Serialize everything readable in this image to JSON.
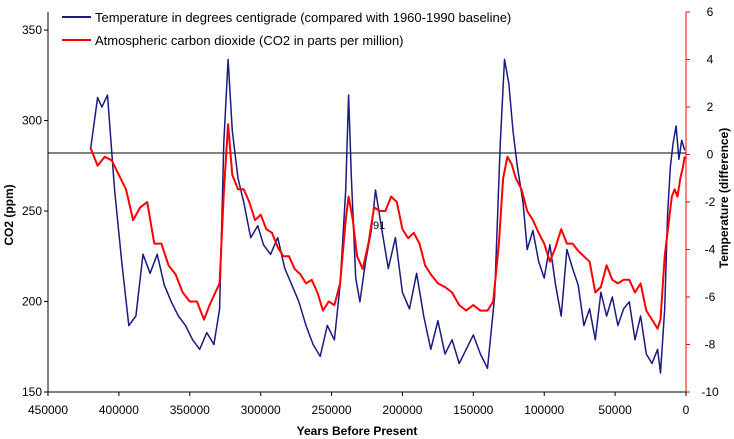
{
  "chart_data": {
    "type": "line",
    "xlabel": "Years Before Present",
    "ylabel_left": "CO2 (ppm)",
    "ylabel_right": "Temperature (difference)",
    "xlim": [
      450000,
      0
    ],
    "ylim_left": [
      150,
      360
    ],
    "ylim_right": [
      -10,
      6
    ],
    "x_ticks": [
      "450000",
      "400000",
      "350000",
      "300000",
      "250000",
      "200000",
      "150000",
      "100000",
      "50000",
      "0"
    ],
    "y_left_ticks": [
      "150",
      "200",
      "250",
      "300",
      "350"
    ],
    "y_right_ticks": [
      "6",
      "4",
      "2",
      "0",
      "-2",
      "-4",
      "-6",
      "-8",
      "-10"
    ],
    "baseline_temperature": 0,
    "grid": false,
    "legend_position": "top-left",
    "annotation": "91",
    "series": [
      {
        "name": "Temperature in degrees centigrade (compared with 1960-1990 baseline)",
        "axis": "right",
        "color": "#1a1a80",
        "points": [
          [
            420000,
            0.2
          ],
          [
            415000,
            2.4
          ],
          [
            412000,
            2.0
          ],
          [
            408000,
            2.5
          ],
          [
            403000,
            -1.5
          ],
          [
            398000,
            -4.5
          ],
          [
            393000,
            -7.2
          ],
          [
            388000,
            -6.8
          ],
          [
            383000,
            -4.2
          ],
          [
            378000,
            -5.0
          ],
          [
            373000,
            -4.2
          ],
          [
            368000,
            -5.5
          ],
          [
            363000,
            -6.2
          ],
          [
            358000,
            -6.8
          ],
          [
            353000,
            -7.2
          ],
          [
            348000,
            -7.8
          ],
          [
            343000,
            -8.2
          ],
          [
            338000,
            -7.5
          ],
          [
            333000,
            -8.0
          ],
          [
            329000,
            -6.5
          ],
          [
            326000,
            0.5
          ],
          [
            323000,
            4.0
          ],
          [
            320000,
            1.0
          ],
          [
            316000,
            -1.0
          ],
          [
            312000,
            -2.0
          ],
          [
            307000,
            -3.5
          ],
          [
            302000,
            -3.0
          ],
          [
            298000,
            -3.8
          ],
          [
            293000,
            -4.2
          ],
          [
            288000,
            -3.5
          ],
          [
            283000,
            -4.8
          ],
          [
            278000,
            -5.5
          ],
          [
            273000,
            -6.2
          ],
          [
            268000,
            -7.2
          ],
          [
            263000,
            -8.0
          ],
          [
            258000,
            -8.5
          ],
          [
            253000,
            -7.2
          ],
          [
            248000,
            -7.8
          ],
          [
            244000,
            -5.5
          ],
          [
            240000,
            -1.5
          ],
          [
            238000,
            2.5
          ],
          [
            236000,
            -1.0
          ],
          [
            233000,
            -5.2
          ],
          [
            230000,
            -6.2
          ],
          [
            226000,
            -4.5
          ],
          [
            222000,
            -3.2
          ],
          [
            219000,
            -1.5
          ],
          [
            215000,
            -3.0
          ],
          [
            210000,
            -4.8
          ],
          [
            205000,
            -3.5
          ],
          [
            200000,
            -5.8
          ],
          [
            195000,
            -6.5
          ],
          [
            190000,
            -5.0
          ],
          [
            185000,
            -6.8
          ],
          [
            180000,
            -8.2
          ],
          [
            175000,
            -7.0
          ],
          [
            170000,
            -8.4
          ],
          [
            165000,
            -7.8
          ],
          [
            160000,
            -8.8
          ],
          [
            155000,
            -8.2
          ],
          [
            150000,
            -7.6
          ],
          [
            145000,
            -8.4
          ],
          [
            140000,
            -9.0
          ],
          [
            135000,
            -6.0
          ],
          [
            131000,
            0.5
          ],
          [
            128000,
            4.0
          ],
          [
            125000,
            3.0
          ],
          [
            122000,
            1.0
          ],
          [
            119000,
            -0.5
          ],
          [
            115000,
            -2.0
          ],
          [
            112000,
            -4.0
          ],
          [
            108000,
            -3.2
          ],
          [
            104000,
            -4.5
          ],
          [
            100000,
            -5.2
          ],
          [
            96000,
            -3.8
          ],
          [
            92000,
            -5.5
          ],
          [
            88000,
            -6.8
          ],
          [
            84000,
            -4.0
          ],
          [
            80000,
            -4.8
          ],
          [
            76000,
            -5.5
          ],
          [
            72000,
            -7.2
          ],
          [
            68000,
            -6.5
          ],
          [
            64000,
            -7.8
          ],
          [
            60000,
            -5.8
          ],
          [
            56000,
            -6.8
          ],
          [
            52000,
            -6.0
          ],
          [
            48000,
            -7.2
          ],
          [
            44000,
            -6.5
          ],
          [
            40000,
            -6.2
          ],
          [
            36000,
            -7.8
          ],
          [
            32000,
            -6.8
          ],
          [
            28000,
            -8.4
          ],
          [
            24000,
            -8.8
          ],
          [
            20000,
            -8.2
          ],
          [
            18000,
            -9.2
          ],
          [
            15000,
            -6.5
          ],
          [
            13000,
            -2.5
          ],
          [
            11000,
            -0.5
          ],
          [
            9000,
            0.5
          ],
          [
            7000,
            1.2
          ],
          [
            5000,
            -0.2
          ],
          [
            3000,
            0.6
          ],
          [
            1000,
            0.2
          ]
        ]
      },
      {
        "name": "Atmospheric carbon dioxide (CO2 in parts per million)",
        "axis": "left",
        "color": "#ff0000",
        "points": [
          [
            420000,
            285
          ],
          [
            415000,
            275
          ],
          [
            410000,
            280
          ],
          [
            405000,
            278
          ],
          [
            400000,
            270
          ],
          [
            395000,
            262
          ],
          [
            390000,
            245
          ],
          [
            385000,
            252
          ],
          [
            380000,
            255
          ],
          [
            375000,
            232
          ],
          [
            370000,
            232
          ],
          [
            365000,
            220
          ],
          [
            360000,
            215
          ],
          [
            355000,
            205
          ],
          [
            350000,
            200
          ],
          [
            345000,
            200
          ],
          [
            340000,
            190
          ],
          [
            336000,
            198
          ],
          [
            332000,
            205
          ],
          [
            329000,
            210
          ],
          [
            326000,
            260
          ],
          [
            323000,
            298
          ],
          [
            320000,
            270
          ],
          [
            316000,
            262
          ],
          [
            312000,
            262
          ],
          [
            308000,
            255
          ],
          [
            304000,
            245
          ],
          [
            300000,
            248
          ],
          [
            296000,
            240
          ],
          [
            292000,
            238
          ],
          [
            288000,
            230
          ],
          [
            284000,
            225
          ],
          [
            280000,
            225
          ],
          [
            276000,
            218
          ],
          [
            272000,
            215
          ],
          [
            268000,
            210
          ],
          [
            264000,
            212
          ],
          [
            260000,
            205
          ],
          [
            256000,
            195
          ],
          [
            252000,
            200
          ],
          [
            248000,
            198
          ],
          [
            244000,
            210
          ],
          [
            240000,
            245
          ],
          [
            238000,
            258
          ],
          [
            235000,
            245
          ],
          [
            232000,
            225
          ],
          [
            228000,
            218
          ],
          [
            224000,
            232
          ],
          [
            220000,
            252
          ],
          [
            216000,
            250
          ],
          [
            212000,
            250
          ],
          [
            208000,
            258
          ],
          [
            204000,
            255
          ],
          [
            200000,
            240
          ],
          [
            196000,
            235
          ],
          [
            192000,
            238
          ],
          [
            188000,
            232
          ],
          [
            184000,
            220
          ],
          [
            180000,
            215
          ],
          [
            175000,
            210
          ],
          [
            170000,
            208
          ],
          [
            165000,
            205
          ],
          [
            160000,
            198
          ],
          [
            155000,
            195
          ],
          [
            150000,
            198
          ],
          [
            145000,
            195
          ],
          [
            140000,
            195
          ],
          [
            136000,
            200
          ],
          [
            132000,
            232
          ],
          [
            129000,
            268
          ],
          [
            126000,
            280
          ],
          [
            123000,
            276
          ],
          [
            120000,
            268
          ],
          [
            116000,
            262
          ],
          [
            112000,
            250
          ],
          [
            108000,
            245
          ],
          [
            104000,
            238
          ],
          [
            100000,
            232
          ],
          [
            96000,
            222
          ],
          [
            92000,
            230
          ],
          [
            88000,
            240
          ],
          [
            84000,
            232
          ],
          [
            80000,
            232
          ],
          [
            76000,
            228
          ],
          [
            72000,
            225
          ],
          [
            68000,
            222
          ],
          [
            64000,
            205
          ],
          [
            60000,
            208
          ],
          [
            56000,
            220
          ],
          [
            52000,
            212
          ],
          [
            48000,
            210
          ],
          [
            44000,
            212
          ],
          [
            40000,
            212
          ],
          [
            36000,
            205
          ],
          [
            32000,
            210
          ],
          [
            28000,
            195
          ],
          [
            24000,
            190
          ],
          [
            20000,
            185
          ],
          [
            18000,
            190
          ],
          [
            15000,
            225
          ],
          [
            12000,
            245
          ],
          [
            10000,
            258
          ],
          [
            8000,
            262
          ],
          [
            6000,
            258
          ],
          [
            4000,
            268
          ],
          [
            2000,
            275
          ],
          [
            1000,
            280
          ]
        ]
      }
    ]
  }
}
